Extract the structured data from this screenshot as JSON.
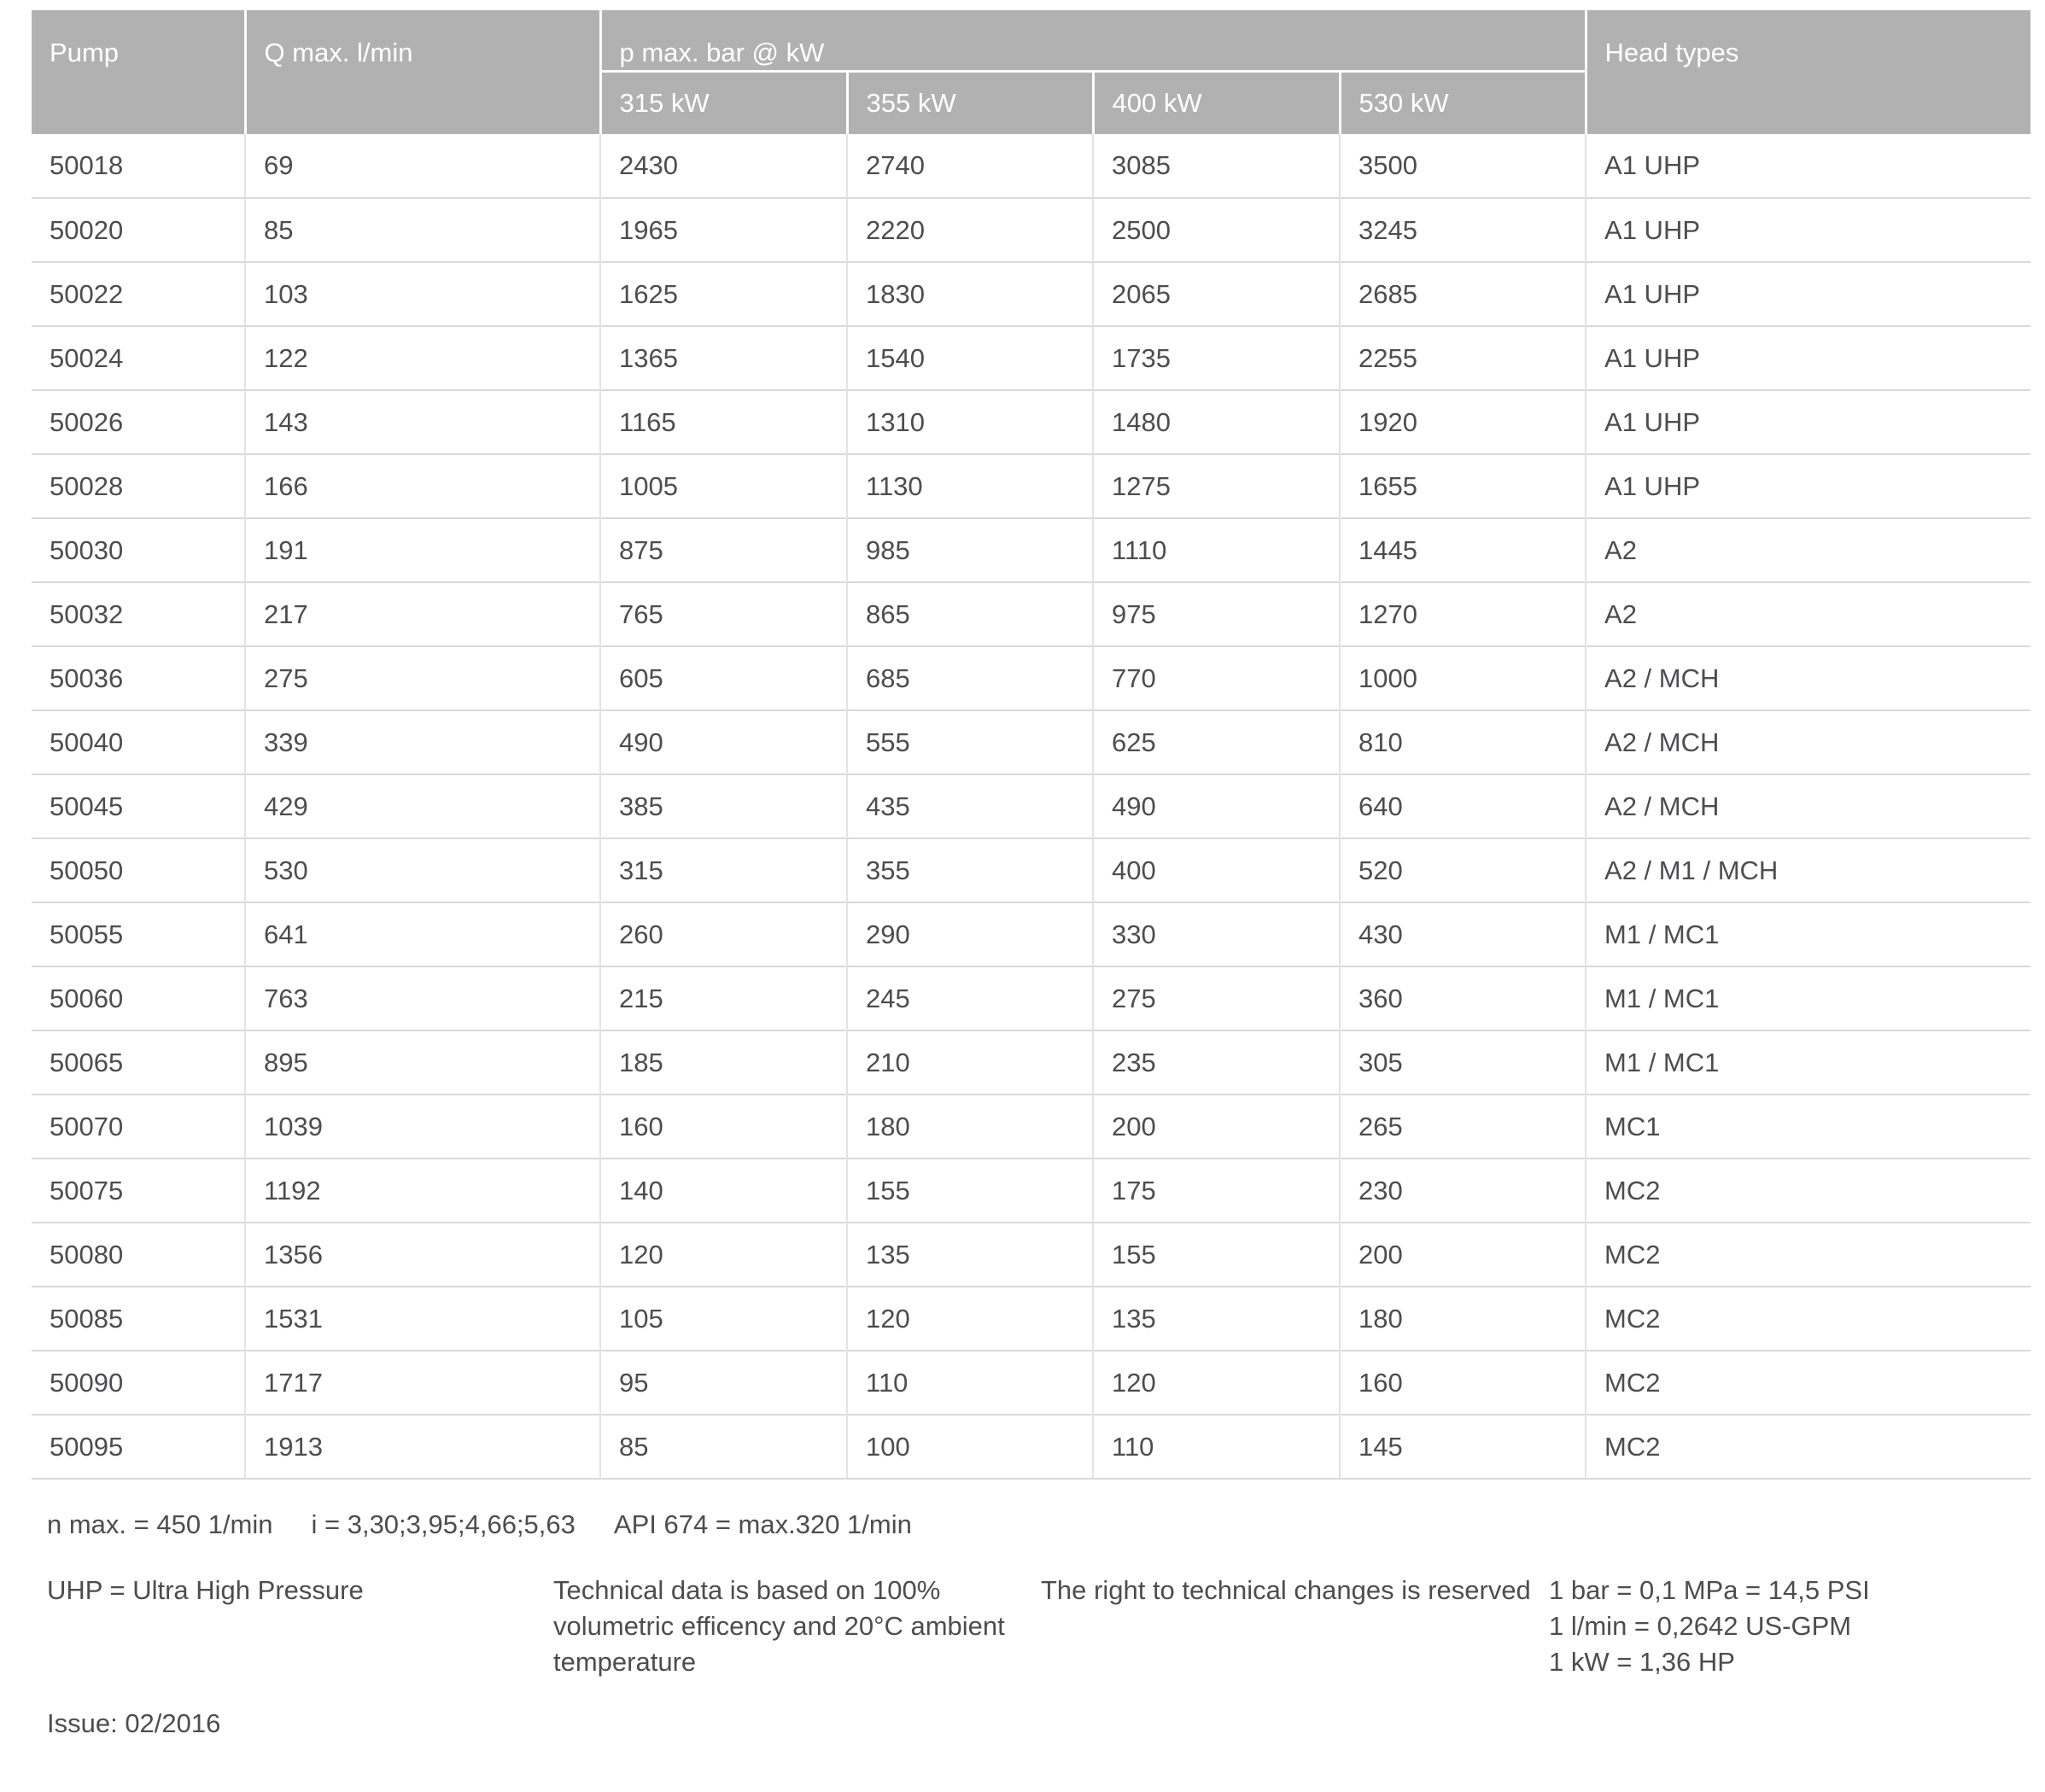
{
  "colors": {
    "header_bg": "#b1b1b1",
    "header_text": "#ffffff",
    "body_text": "#4d4d4f",
    "row_line": "#d9d9d9",
    "col_line": "#e3e3e3"
  },
  "table": {
    "columns": {
      "pump": "Pump",
      "q_max": "Q max. l/min",
      "p_max_group": "p max. bar @ kW",
      "kw": [
        "315 kW",
        "355 kW",
        "400 kW",
        "530 kW"
      ],
      "head_types": "Head types"
    },
    "rows": [
      {
        "pump": "50018",
        "q": "69",
        "kw315": "2430",
        "kw355": "2740",
        "kw400": "3085",
        "kw530": "3500",
        "head": "A1 UHP"
      },
      {
        "pump": "50020",
        "q": "85",
        "kw315": "1965",
        "kw355": "2220",
        "kw400": "2500",
        "kw530": "3245",
        "head": "A1 UHP"
      },
      {
        "pump": "50022",
        "q": "103",
        "kw315": "1625",
        "kw355": "1830",
        "kw400": "2065",
        "kw530": "2685",
        "head": "A1 UHP"
      },
      {
        "pump": "50024",
        "q": "122",
        "kw315": "1365",
        "kw355": "1540",
        "kw400": "1735",
        "kw530": "2255",
        "head": "A1 UHP"
      },
      {
        "pump": "50026",
        "q": "143",
        "kw315": "1165",
        "kw355": "1310",
        "kw400": "1480",
        "kw530": "1920",
        "head": "A1 UHP"
      },
      {
        "pump": "50028",
        "q": "166",
        "kw315": "1005",
        "kw355": "1130",
        "kw400": "1275",
        "kw530": "1655",
        "head": "A1 UHP"
      },
      {
        "pump": "50030",
        "q": "191",
        "kw315": "875",
        "kw355": "985",
        "kw400": "1110",
        "kw530": "1445",
        "head": "A2"
      },
      {
        "pump": "50032",
        "q": "217",
        "kw315": "765",
        "kw355": "865",
        "kw400": "975",
        "kw530": "1270",
        "head": "A2"
      },
      {
        "pump": "50036",
        "q": "275",
        "kw315": "605",
        "kw355": "685",
        "kw400": "770",
        "kw530": "1000",
        "head": "A2 / MCH"
      },
      {
        "pump": "50040",
        "q": "339",
        "kw315": "490",
        "kw355": "555",
        "kw400": "625",
        "kw530": "810",
        "head": "A2 / MCH"
      },
      {
        "pump": "50045",
        "q": "429",
        "kw315": "385",
        "kw355": "435",
        "kw400": "490",
        "kw530": "640",
        "head": "A2 / MCH"
      },
      {
        "pump": "50050",
        "q": "530",
        "kw315": "315",
        "kw355": "355",
        "kw400": "400",
        "kw530": "520",
        "head": "A2 / M1 / MCH"
      },
      {
        "pump": "50055",
        "q": "641",
        "kw315": "260",
        "kw355": "290",
        "kw400": "330",
        "kw530": "430",
        "head": "M1 / MC1"
      },
      {
        "pump": "50060",
        "q": "763",
        "kw315": "215",
        "kw355": "245",
        "kw400": "275",
        "kw530": "360",
        "head": "M1 / MC1"
      },
      {
        "pump": "50065",
        "q": "895",
        "kw315": "185",
        "kw355": "210",
        "kw400": "235",
        "kw530": "305",
        "head": "M1 / MC1"
      },
      {
        "pump": "50070",
        "q": "1039",
        "kw315": "160",
        "kw355": "180",
        "kw400": "200",
        "kw530": "265",
        "head": "MC1"
      },
      {
        "pump": "50075",
        "q": "1192",
        "kw315": "140",
        "kw355": "155",
        "kw400": "175",
        "kw530": "230",
        "head": "MC2"
      },
      {
        "pump": "50080",
        "q": "1356",
        "kw315": "120",
        "kw355": "135",
        "kw400": "155",
        "kw530": "200",
        "head": "MC2"
      },
      {
        "pump": "50085",
        "q": "1531",
        "kw315": "105",
        "kw355": "120",
        "kw400": "135",
        "kw530": "180",
        "head": "MC2"
      },
      {
        "pump": "50090",
        "q": "1717",
        "kw315": "95",
        "kw355": "110",
        "kw400": "120",
        "kw530": "160",
        "head": "MC2"
      },
      {
        "pump": "50095",
        "q": "1913",
        "kw315": "85",
        "kw355": "100",
        "kw400": "110",
        "kw530": "145",
        "head": "MC2"
      }
    ]
  },
  "notes": {
    "line1": [
      "n max. = 450 1/min",
      "i = 3,30;3,95;4,66;5,63",
      "API 674 = max.320 1/min"
    ],
    "uhp": "UHP = Ultra High Pressure",
    "technical": [
      "Technical data is based on 100%",
      "volumetric efficency and 20°C ambient",
      "temperature"
    ],
    "rights": "The right to technical changes is reserved",
    "conversions": [
      "1 bar = 0,1 MPa = 14,5 PSI",
      "1 l/min = 0,2642 US-GPM",
      "1 kW = 1,36 HP"
    ],
    "issue": "Issue: 02/2016"
  }
}
